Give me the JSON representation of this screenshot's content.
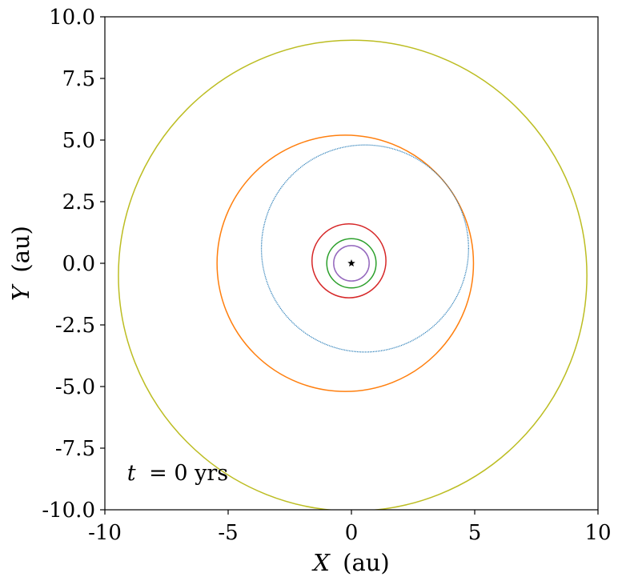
{
  "chart_data": {
    "type": "line",
    "title": "",
    "xlabel": {
      "var": "X",
      "unit": "(au)"
    },
    "ylabel": {
      "var": "Y",
      "unit": "(au)"
    },
    "xlim": [
      -10,
      10
    ],
    "ylim": [
      -10,
      10
    ],
    "xticks": [
      -10,
      -5,
      0,
      5,
      10
    ],
    "xtick_labels": [
      "-10",
      "-5",
      "0",
      "5",
      "10"
    ],
    "yticks": [
      -10,
      -7.5,
      -5,
      -2.5,
      0,
      2.5,
      5,
      7.5,
      10
    ],
    "ytick_labels": [
      "-10.0",
      "-7.5",
      "-5.0",
      "-2.5",
      "0.0",
      "2.5",
      "5.0",
      "7.5",
      "10.0"
    ],
    "grid": false,
    "annotation": {
      "var": "t",
      "text": "= 0 yrs",
      "x": -9.1,
      "y": -8.8
    },
    "star": {
      "x": 0,
      "y": 0,
      "color": "#000000"
    },
    "series": [
      {
        "cx": 0.05,
        "cy": -0.5,
        "rx": 9.5,
        "ry": 9.55,
        "color": "#bcbd22",
        "dotted": false
      },
      {
        "cx": -0.25,
        "cy": 0.0,
        "rx": 5.2,
        "ry": 5.2,
        "color": "#ff7f0e",
        "dotted": false
      },
      {
        "cx": 0.55,
        "cy": 0.6,
        "rx": 4.2,
        "ry": 4.2,
        "color": "#1f77b4",
        "dotted": true
      },
      {
        "cx": -0.1,
        "cy": 0.1,
        "rx": 1.5,
        "ry": 1.5,
        "color": "#d62728",
        "dotted": false
      },
      {
        "cx": 0.0,
        "cy": 0.0,
        "rx": 1.0,
        "ry": 1.0,
        "color": "#2ca02c",
        "dotted": false
      },
      {
        "cx": 0.0,
        "cy": 0.0,
        "rx": 0.72,
        "ry": 0.72,
        "color": "#9467bd",
        "dotted": false
      }
    ]
  }
}
